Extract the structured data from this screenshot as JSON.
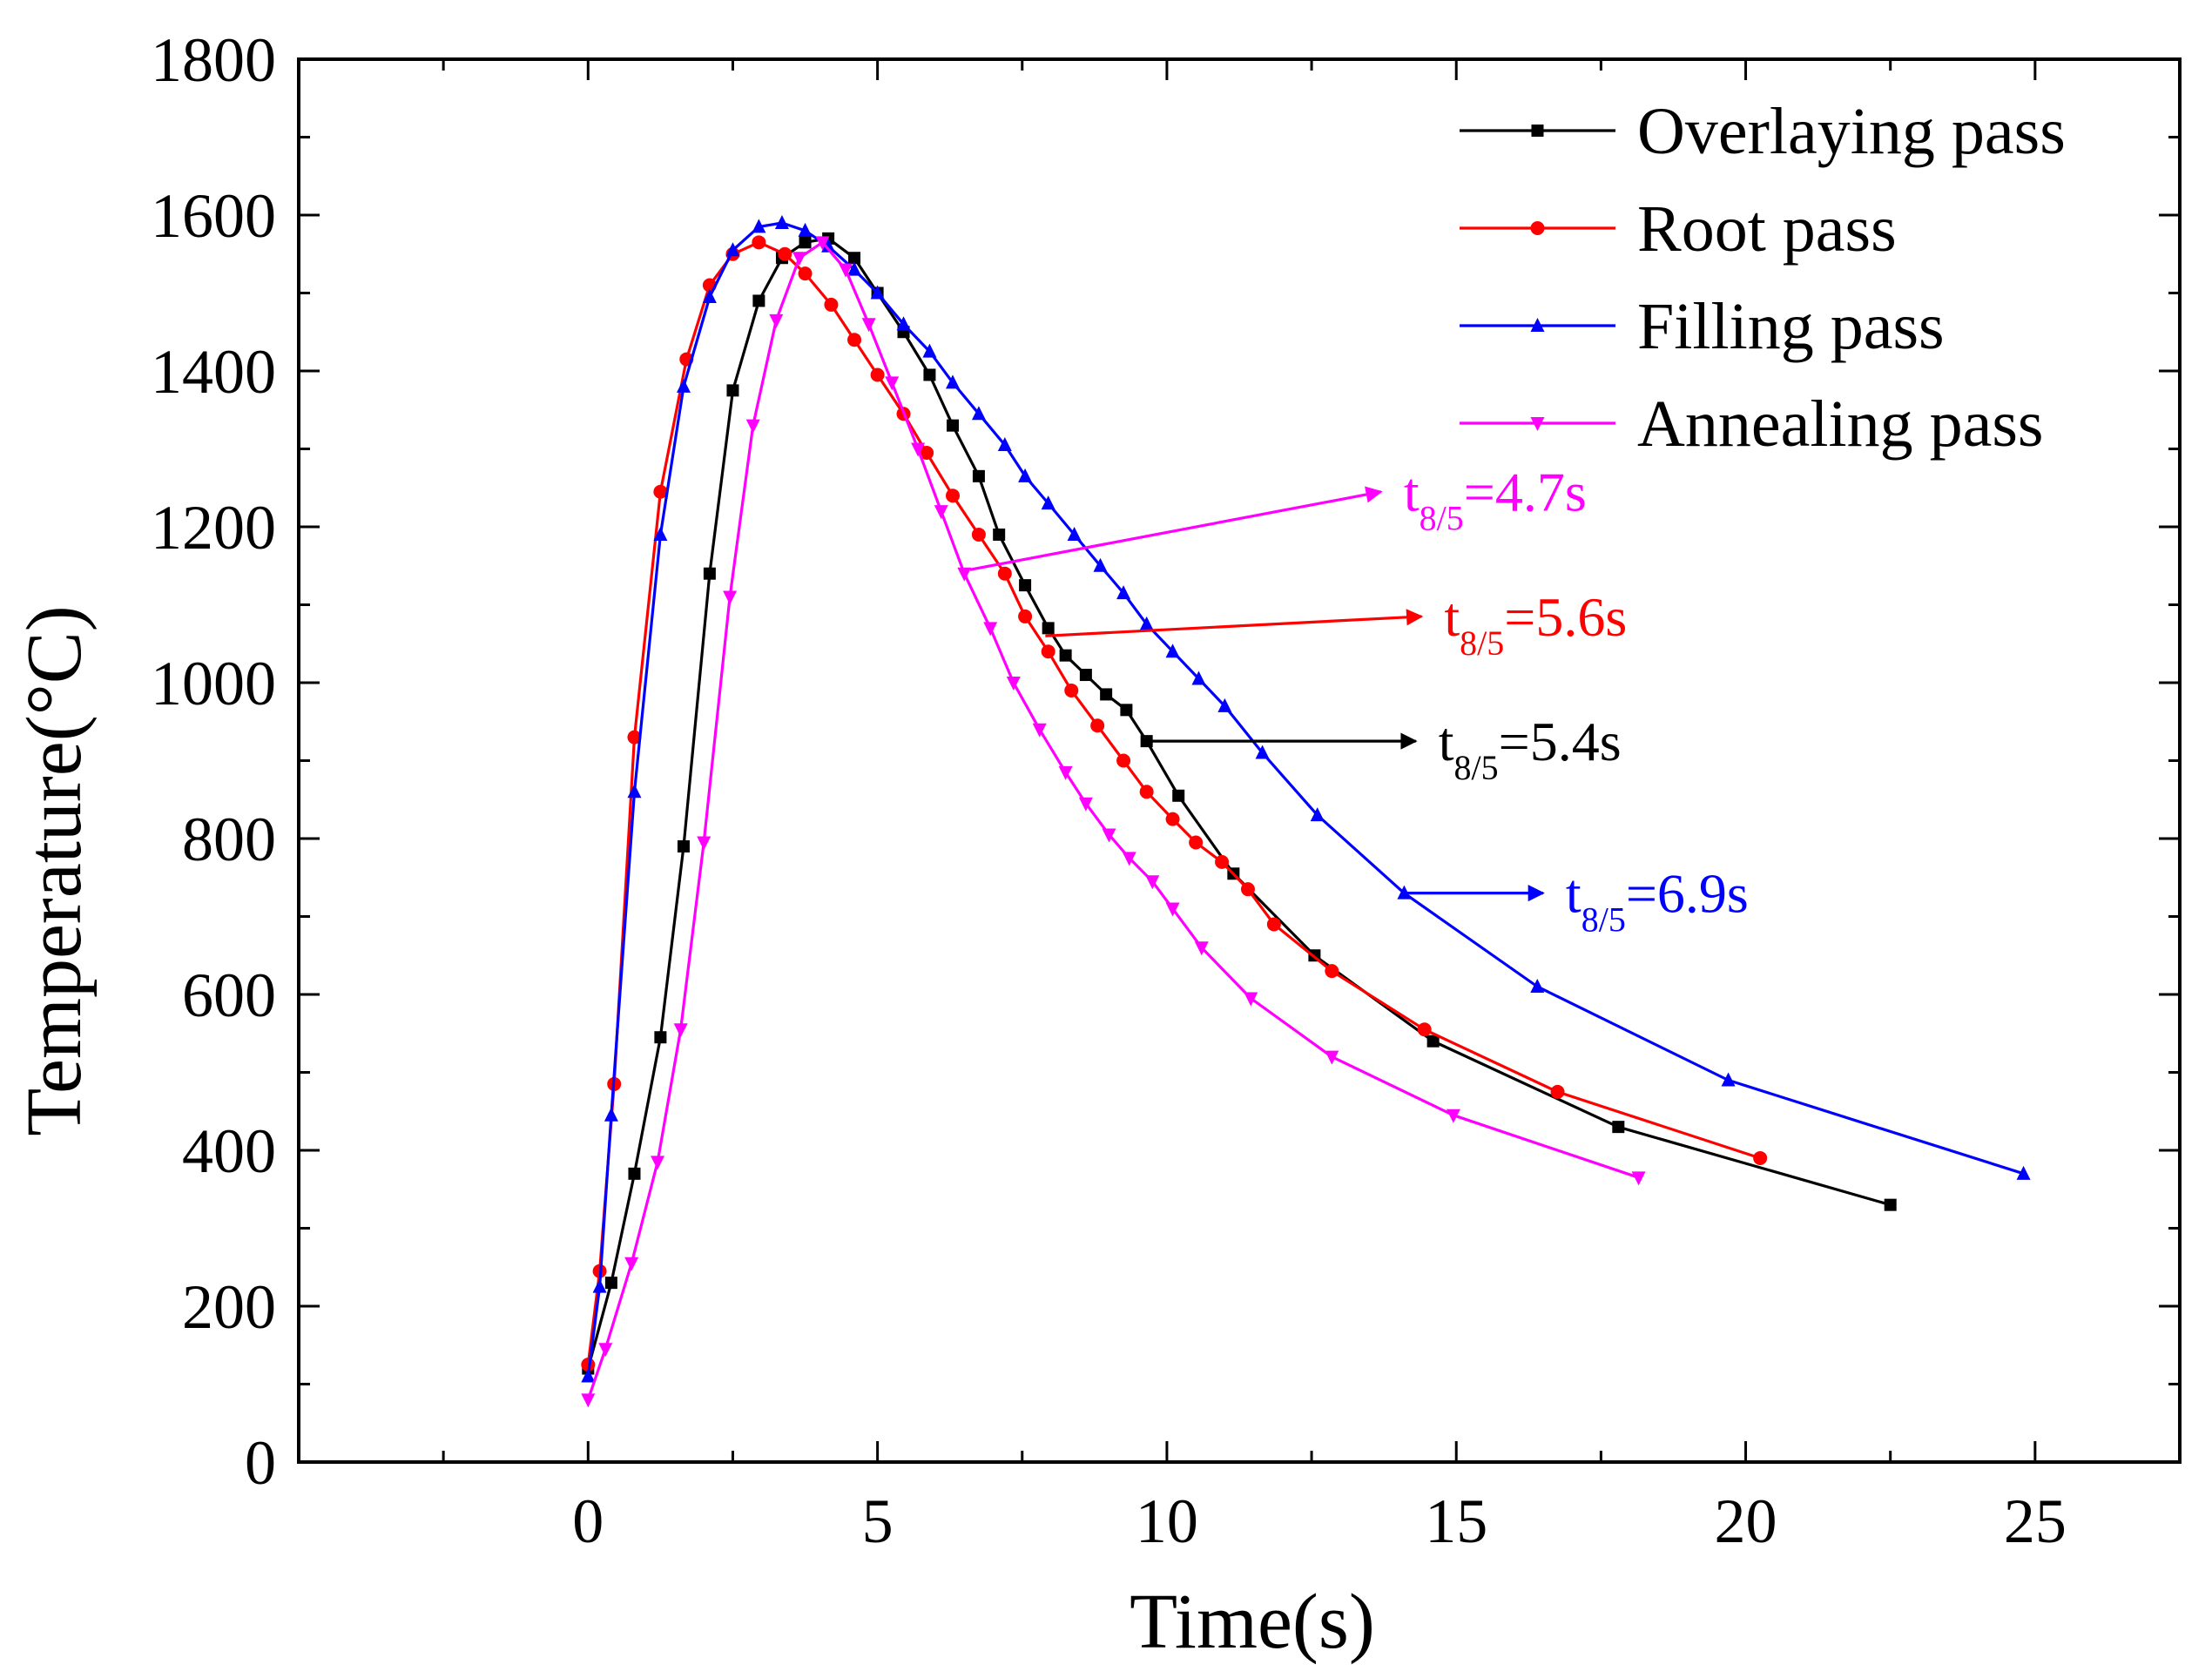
{
  "chart_data": {
    "type": "line",
    "title": "",
    "xlabel": "Time(s)",
    "ylabel": "Temperature(°C)",
    "xlim": [
      -5,
      27.5
    ],
    "ylim": [
      0,
      1800
    ],
    "xticks": [
      0,
      5,
      10,
      15,
      20,
      25
    ],
    "yticks": [
      0,
      200,
      400,
      600,
      800,
      1000,
      1200,
      1400,
      1600,
      1800
    ],
    "grid": false,
    "legend_position": "top-right",
    "series": [
      {
        "name": "Overlaying pass",
        "color": "#000000",
        "marker": "square",
        "x": [
          0,
          0.4,
          0.8,
          1.25,
          1.65,
          2.1,
          2.5,
          2.95,
          3.35,
          3.75,
          4.15,
          4.6,
          5.0,
          5.45,
          5.9,
          6.3,
          6.75,
          7.1,
          7.55,
          7.95,
          8.25,
          8.6,
          8.95,
          9.3,
          9.65,
          10.2,
          11.15,
          12.55,
          14.6,
          17.8,
          22.5
        ],
        "y": [
          120,
          230,
          370,
          545,
          790,
          1140,
          1375,
          1490,
          1545,
          1565,
          1570,
          1545,
          1500,
          1450,
          1395,
          1330,
          1265,
          1190,
          1125,
          1070,
          1035,
          1010,
          985,
          965,
          925,
          855,
          755,
          650,
          540,
          430,
          330
        ]
      },
      {
        "name": "Root pass",
        "color": "#ff0000",
        "marker": "circle",
        "x": [
          0,
          0.2,
          0.45,
          0.8,
          1.25,
          1.7,
          2.1,
          2.5,
          2.95,
          3.4,
          3.75,
          4.2,
          4.6,
          5.0,
          5.45,
          5.85,
          6.3,
          6.75,
          7.2,
          7.55,
          7.95,
          8.35,
          8.8,
          9.25,
          9.65,
          10.1,
          10.5,
          10.95,
          11.4,
          11.85,
          12.85,
          14.45,
          16.75,
          20.25
        ],
        "y": [
          125,
          245,
          485,
          930,
          1245,
          1415,
          1510,
          1550,
          1565,
          1550,
          1525,
          1485,
          1440,
          1395,
          1345,
          1295,
          1240,
          1190,
          1140,
          1085,
          1040,
          990,
          945,
          900,
          860,
          825,
          795,
          770,
          735,
          690,
          630,
          555,
          475,
          390
        ]
      },
      {
        "name": "Filling pass",
        "color": "#0000ff",
        "marker": "triangle-up",
        "x": [
          0,
          0.2,
          0.4,
          0.8,
          1.25,
          1.65,
          2.1,
          2.5,
          2.95,
          3.35,
          3.75,
          4.15,
          4.6,
          5.0,
          5.45,
          5.9,
          6.3,
          6.75,
          7.2,
          7.55,
          7.95,
          8.4,
          8.85,
          9.25,
          9.65,
          10.1,
          10.55,
          11.0,
          11.65,
          12.6,
          14.1,
          16.4,
          19.7,
          24.8
        ],
        "y": [
          110,
          225,
          445,
          860,
          1190,
          1380,
          1495,
          1555,
          1585,
          1590,
          1580,
          1560,
          1530,
          1500,
          1460,
          1425,
          1385,
          1345,
          1305,
          1265,
          1230,
          1190,
          1150,
          1115,
          1075,
          1040,
          1005,
          970,
          910,
          830,
          730,
          610,
          490,
          370
        ]
      },
      {
        "name": " Annealing pass",
        "color": "#ff00ff",
        "marker": "triangle-down",
        "x": [
          0,
          0.3,
          0.75,
          1.2,
          1.6,
          2.0,
          2.45,
          2.85,
          3.25,
          3.65,
          4.05,
          4.45,
          4.85,
          5.25,
          5.7,
          6.1,
          6.5,
          6.95,
          7.35,
          7.8,
          8.25,
          8.6,
          9.0,
          9.35,
          9.75,
          10.1,
          10.6,
          11.45,
          12.85,
          14.95,
          18.15
        ],
        "y": [
          80,
          145,
          255,
          385,
          555,
          795,
          1110,
          1330,
          1465,
          1545,
          1565,
          1530,
          1460,
          1385,
          1300,
          1220,
          1140,
          1070,
          1000,
          940,
          885,
          845,
          805,
          775,
          745,
          710,
          660,
          595,
          520,
          445,
          365
        ]
      }
    ],
    "annotations": [
      {
        "base": "t",
        "subscript": "8/5",
        "value": "=4.7s",
        "color": "#ff00ff",
        "from": [
          6.6,
          1145
        ],
        "to": [
          13.7,
          1245
        ]
      },
      {
        "base": "t",
        "subscript": "8/5",
        "value": "=5.6s",
        "color": "#ff0000",
        "from": [
          7.9,
          1060
        ],
        "to": [
          14.4,
          1085
        ]
      },
      {
        "base": "t",
        "subscript": "8/5",
        "value": "=5.4s",
        "color": "#000000",
        "from": [
          9.65,
          925
        ],
        "to": [
          14.3,
          925
        ]
      },
      {
        "base": "t",
        "subscript": "8/5",
        "value": "=6.9s",
        "color": "#0000ff",
        "from": [
          14.1,
          730
        ],
        "to": [
          16.5,
          730
        ]
      }
    ]
  }
}
